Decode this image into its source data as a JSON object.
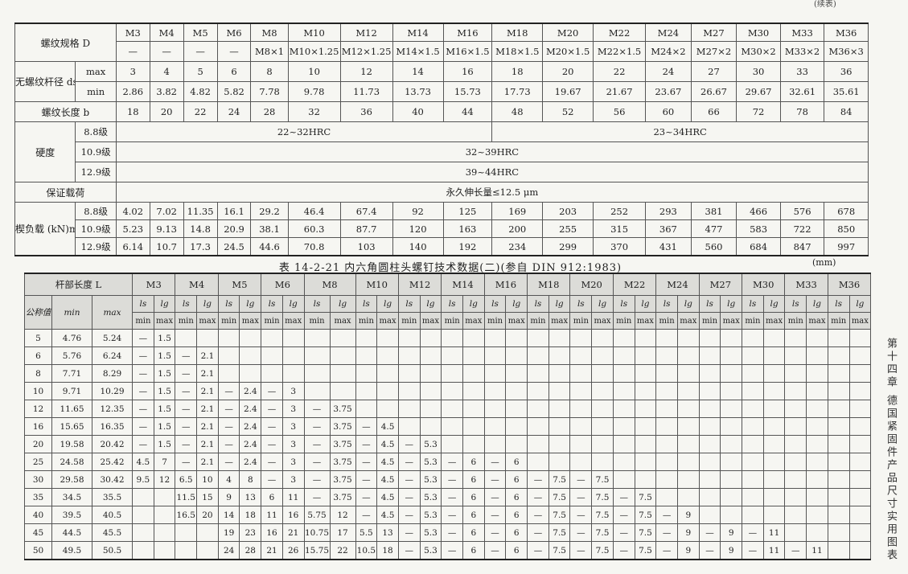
{
  "continued_note": "(续表)",
  "top_table": {
    "thread_spec_label": "螺纹规格 D",
    "sizes": [
      "M3",
      "M4",
      "M5",
      "M6",
      "M8",
      "M10",
      "M12",
      "M14",
      "M16",
      "M18",
      "M20",
      "M22",
      "M24",
      "M27",
      "M30",
      "M33",
      "M36"
    ],
    "fine_threads": [
      "—",
      "—",
      "—",
      "—",
      "M8×1",
      "M10×1.25",
      "M12×1.25",
      "M14×1.5",
      "M16×1.5",
      "M18×1.5",
      "M20×1.5",
      "M22×1.5",
      "M24×2",
      "M27×2",
      "M30×2",
      "M33×2",
      "M36×3"
    ],
    "shank_dia_label": "无螺纹杆径 ds",
    "max_label": "max",
    "min_label": "min",
    "shank_max": [
      "3",
      "4",
      "5",
      "6",
      "8",
      "10",
      "12",
      "14",
      "16",
      "18",
      "20",
      "22",
      "24",
      "27",
      "30",
      "33",
      "36"
    ],
    "shank_min": [
      "2.86",
      "3.82",
      "4.82",
      "5.82",
      "7.78",
      "9.78",
      "11.73",
      "13.73",
      "15.73",
      "17.73",
      "19.67",
      "21.67",
      "23.67",
      "26.67",
      "29.67",
      "32.61",
      "35.61"
    ],
    "thread_length_label": "螺纹长度 b",
    "thread_length": [
      "18",
      "20",
      "22",
      "24",
      "28",
      "32",
      "36",
      "40",
      "44",
      "48",
      "52",
      "56",
      "60",
      "66",
      "72",
      "78",
      "84"
    ],
    "hardness_label": "硬度",
    "grades": [
      "8.8级",
      "10.9级",
      "12.9级"
    ],
    "hardness_88_small": "22~32HRC",
    "hardness_88_large": "23~34HRC",
    "hardness_109": "32~39HRC",
    "hardness_129": "39~44HRC",
    "proof_load_label": "保证载荷",
    "proof_load": "永久伸长量≤12.5 μm",
    "wedge_load_label": "楔负载 (kN)min",
    "wedge_load": [
      [
        "4.02",
        "7.02",
        "11.35",
        "16.1",
        "29.2",
        "46.4",
        "67.4",
        "92",
        "125",
        "169",
        "203",
        "252",
        "293",
        "381",
        "466",
        "576",
        "678"
      ],
      [
        "5.23",
        "9.13",
        "14.8",
        "20.9",
        "38.1",
        "60.3",
        "87.7",
        "120",
        "163",
        "200",
        "255",
        "315",
        "367",
        "477",
        "583",
        "722",
        "850"
      ],
      [
        "6.14",
        "10.7",
        "17.3",
        "24.5",
        "44.6",
        "70.8",
        "103",
        "140",
        "192",
        "234",
        "299",
        "370",
        "431",
        "560",
        "684",
        "847",
        "997"
      ]
    ]
  },
  "table_title": "表 14-2-21  内六角圆柱头螺钉技术数据(二)(参自 DIN 912:1983)",
  "unit": "(mm)",
  "bottom_table": {
    "shank_length_label": "杆部长度 L",
    "nominal_label": "公称值",
    "min_label": "min",
    "max_label": "max",
    "ls_label": "ls",
    "lg_label": "lg",
    "sizes": [
      "M3",
      "M4",
      "M5",
      "M6",
      "M8",
      "M10",
      "M12",
      "M14",
      "M16",
      "M18",
      "M20",
      "M22",
      "M24",
      "M27",
      "M30",
      "M33",
      "M36"
    ],
    "rows": [
      [
        "5",
        "4.76",
        "5.24",
        "—",
        "1.5"
      ],
      [
        "6",
        "5.76",
        "6.24",
        "—",
        "1.5",
        "—",
        "2.1"
      ],
      [
        "8",
        "7.71",
        "8.29",
        "—",
        "1.5",
        "—",
        "2.1"
      ],
      [
        "10",
        "9.71",
        "10.29",
        "—",
        "1.5",
        "—",
        "2.1",
        "—",
        "2.4",
        "—",
        "3"
      ],
      [
        "12",
        "11.65",
        "12.35",
        "—",
        "1.5",
        "—",
        "2.1",
        "—",
        "2.4",
        "—",
        "3",
        "—",
        "3.75"
      ],
      [
        "16",
        "15.65",
        "16.35",
        "—",
        "1.5",
        "—",
        "2.1",
        "—",
        "2.4",
        "—",
        "3",
        "—",
        "3.75",
        "—",
        "4.5"
      ],
      [
        "20",
        "19.58",
        "20.42",
        "—",
        "1.5",
        "—",
        "2.1",
        "—",
        "2.4",
        "—",
        "3",
        "—",
        "3.75",
        "—",
        "4.5",
        "—",
        "5.3"
      ],
      [
        "25",
        "24.58",
        "25.42",
        "4.5",
        "7",
        "—",
        "2.1",
        "—",
        "2.4",
        "—",
        "3",
        "—",
        "3.75",
        "—",
        "4.5",
        "—",
        "5.3",
        "—",
        "6",
        "—",
        "6"
      ],
      [
        "30",
        "29.58",
        "30.42",
        "9.5",
        "12",
        "6.5",
        "10",
        "4",
        "8",
        "—",
        "3",
        "—",
        "3.75",
        "—",
        "4.5",
        "—",
        "5.3",
        "—",
        "6",
        "—",
        "6",
        "—",
        "7.5",
        "—",
        "7.5"
      ],
      [
        "35",
        "34.5",
        "35.5",
        "",
        "",
        "11.5",
        "15",
        "9",
        "13",
        "6",
        "11",
        "—",
        "3.75",
        "—",
        "4.5",
        "—",
        "5.3",
        "—",
        "6",
        "—",
        "6",
        "—",
        "7.5",
        "—",
        "7.5",
        "—",
        "7.5"
      ],
      [
        "40",
        "39.5",
        "40.5",
        "",
        "",
        "16.5",
        "20",
        "14",
        "18",
        "11",
        "16",
        "5.75",
        "12",
        "—",
        "4.5",
        "—",
        "5.3",
        "—",
        "6",
        "—",
        "6",
        "—",
        "7.5",
        "—",
        "7.5",
        "—",
        "7.5",
        "—",
        "9"
      ],
      [
        "45",
        "44.5",
        "45.5",
        "",
        "",
        "",
        "",
        "19",
        "23",
        "16",
        "21",
        "10.75",
        "17",
        "5.5",
        "13",
        "—",
        "5.3",
        "—",
        "6",
        "—",
        "6",
        "—",
        "7.5",
        "—",
        "7.5",
        "—",
        "7.5",
        "—",
        "9",
        "—",
        "9",
        "—",
        "11"
      ],
      [
        "50",
        "49.5",
        "50.5",
        "",
        "",
        "",
        "",
        "24",
        "28",
        "21",
        "26",
        "15.75",
        "22",
        "10.5",
        "18",
        "—",
        "5.3",
        "—",
        "6",
        "—",
        "6",
        "—",
        "7.5",
        "—",
        "7.5",
        "—",
        "7.5",
        "—",
        "9",
        "—",
        "9",
        "—",
        "11",
        "—",
        "11"
      ]
    ]
  },
  "side_text": "第十四章  德国紧固件产品尺寸实用图表"
}
